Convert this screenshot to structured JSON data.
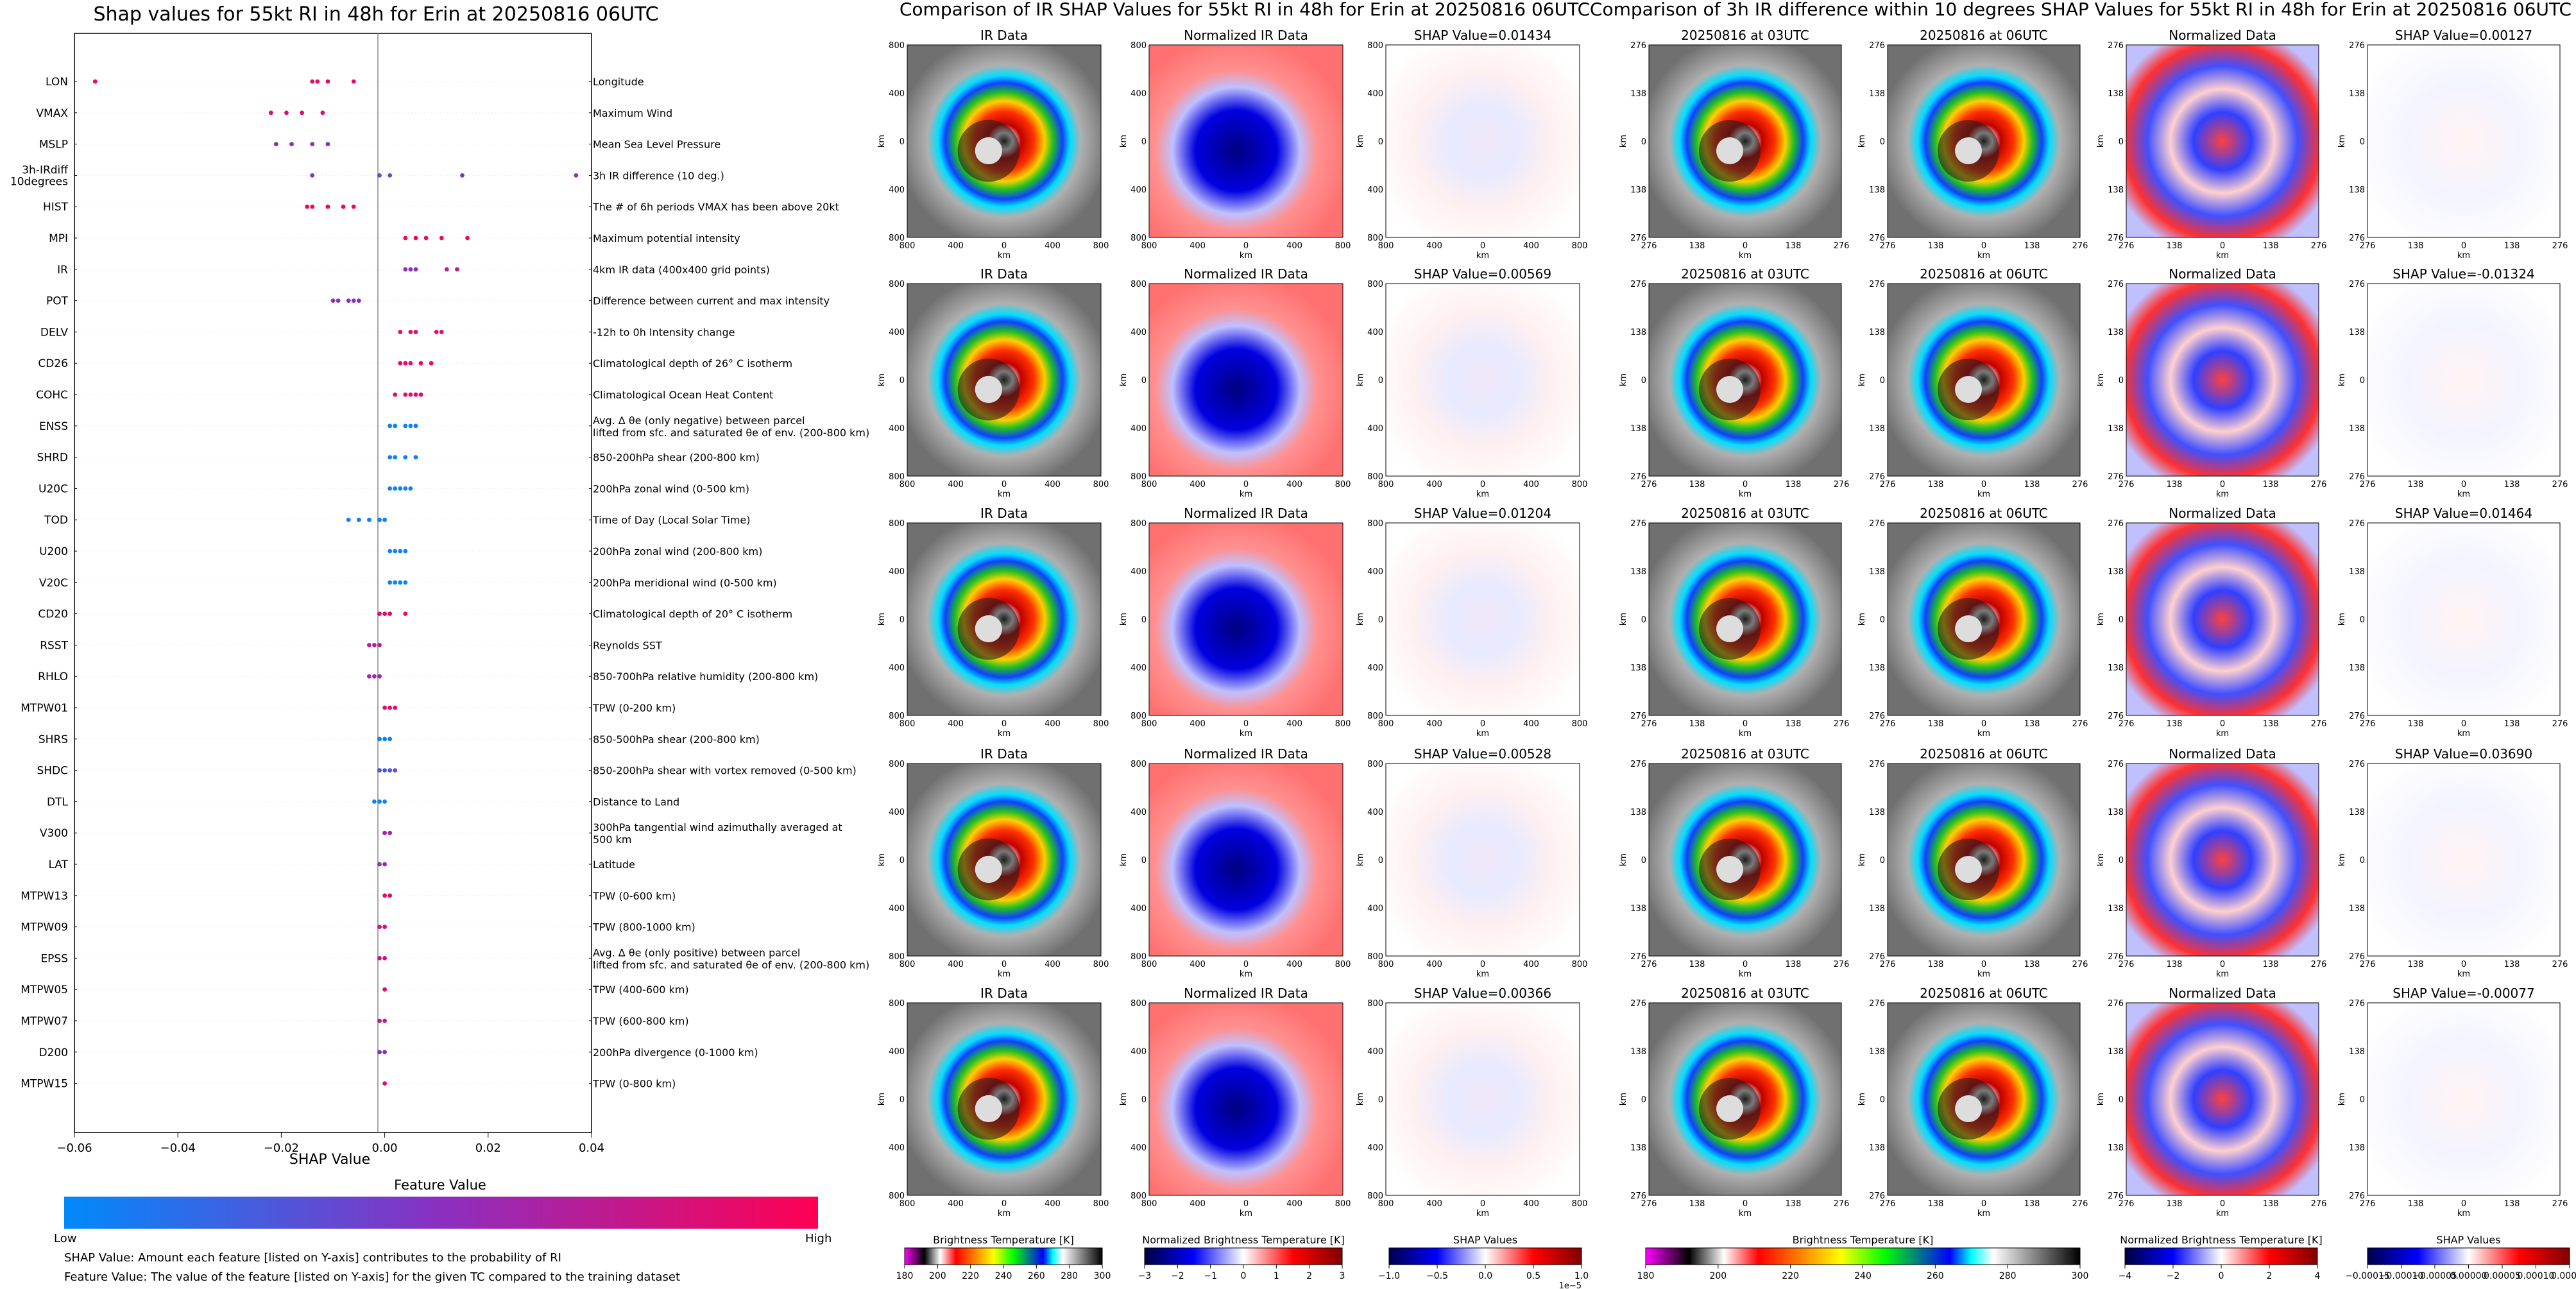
{
  "shap_panel": {
    "title": "Shap values for 55kt RI in 48h for Erin at 20250816 06UTC",
    "xlabel": "SHAP Value",
    "colorbar_title": "Feature Value",
    "colorbar_low": "Low",
    "colorbar_high": "High",
    "footnote_1": "SHAP Value: Amount each feature [listed on Y-axis] contributes to the probability of RI",
    "footnote_2": "Feature Value: The value of the feature [listed on Y-axis] for the given TC compared to the training dataset"
  },
  "ir_panel": {
    "title": "Comparison of IR SHAP Values for 55kt RI in 48h for Erin at 20250816 06UTC",
    "col_titles": [
      "IR Data",
      "Normalized IR Data"
    ],
    "shap_titles": [
      "SHAP Value=0.01434",
      "SHAP Value=0.00569",
      "SHAP Value=0.01204",
      "SHAP Value=0.00528",
      "SHAP Value=0.00366"
    ],
    "ticks": [
      "800",
      "400",
      "0",
      "400",
      "800"
    ],
    "axis_unit": "km",
    "colorbars": [
      {
        "label": "Brightness Temperature [K]",
        "ticks": [
          "180",
          "200",
          "220",
          "240",
          "260",
          "280",
          "300"
        ]
      },
      {
        "label": "Normalized Brightness Temperature [K]",
        "ticks": [
          "−3",
          "−2",
          "−1",
          "0",
          "1",
          "2",
          "3"
        ]
      },
      {
        "label": "SHAP Values",
        "ticks": [
          "−1.0",
          "−0.5",
          "0.0",
          "0.5",
          "1.0"
        ],
        "offset": "1e−5"
      }
    ]
  },
  "diff_panel": {
    "title": "Comparison of 3h IR difference within 10 degrees SHAP Values for 55kt RI in 48h for Erin at 20250816 06UTC",
    "col_titles": [
      "20250816 at 03UTC",
      "20250816 at 06UTC",
      "Normalized Data"
    ],
    "shap_titles": [
      "SHAP Value=0.00127",
      "SHAP Value=-0.01324",
      "SHAP Value=0.01464",
      "SHAP Value=0.03690",
      "SHAP Value=-0.00077"
    ],
    "ticks": [
      "276",
      "138",
      "0",
      "138",
      "276"
    ],
    "axis_unit": "km",
    "colorbars": [
      {
        "label": "Brightness Temperature [K]",
        "ticks": [
          "180",
          "200",
          "220",
          "240",
          "260",
          "280",
          "300"
        ]
      },
      {
        "label": "Normalized Brightness Temperature [K]",
        "ticks": [
          "−4",
          "−2",
          "0",
          "2",
          "4"
        ]
      },
      {
        "label": "SHAP Values",
        "ticks": [
          "−0.00015",
          "−0.00010",
          "−0.00005",
          "0.00000",
          "0.00005",
          "0.00010",
          "0.00015"
        ]
      }
    ]
  },
  "colors": {
    "low": "#008afb",
    "mid": "#8b2fc0",
    "high": "#ff0052",
    "ir_gray": "#7c7c7c",
    "norm_red": "#ff8080",
    "norm_blue": "#0000c8"
  },
  "chart_data": {
    "type": "scatter",
    "title": "Shap values for 55kt RI in 48h for Erin at 20250816 06UTC",
    "xlabel": "SHAP Value",
    "xlim": [
      -0.06,
      0.04
    ],
    "xticks": [
      "−0.06",
      "−0.04",
      "−0.02",
      "0.00",
      "0.02",
      "0.04"
    ],
    "features": [
      {
        "code": "LON",
        "desc": "Longitude",
        "points": [
          [
            -0.056,
            0.9
          ],
          [
            -0.014,
            0.9
          ],
          [
            -0.013,
            0.9
          ],
          [
            -0.011,
            0.9
          ],
          [
            -0.006,
            0.9
          ]
        ]
      },
      {
        "code": "VMAX",
        "desc": "Maximum Wind",
        "points": [
          [
            -0.022,
            0.85
          ],
          [
            -0.019,
            0.85
          ],
          [
            -0.016,
            0.85
          ],
          [
            -0.012,
            0.85
          ]
        ]
      },
      {
        "code": "MSLP",
        "desc": "Mean Sea Level Pressure",
        "points": [
          [
            -0.021,
            0.55
          ],
          [
            -0.018,
            0.55
          ],
          [
            -0.014,
            0.55
          ],
          [
            -0.011,
            0.55
          ]
        ]
      },
      {
        "code": "3h-IRdiff\n10degrees",
        "desc": "3h IR difference (10 deg.)",
        "points": [
          [
            -0.014,
            0.5
          ],
          [
            -0.001,
            0.3
          ],
          [
            0.001,
            0.3
          ],
          [
            0.015,
            0.5
          ],
          [
            0.037,
            0.5
          ]
        ]
      },
      {
        "code": "HIST",
        "desc": "The # of 6h periods VMAX has been above 20kt",
        "points": [
          [
            -0.015,
            0.95
          ],
          [
            -0.014,
            0.95
          ],
          [
            -0.011,
            0.95
          ],
          [
            -0.008,
            0.95
          ],
          [
            -0.006,
            0.95
          ]
        ]
      },
      {
        "code": "MPI",
        "desc": "Maximum potential intensity",
        "points": [
          [
            0.004,
            0.95
          ],
          [
            0.006,
            0.95
          ],
          [
            0.008,
            0.95
          ],
          [
            0.011,
            0.95
          ],
          [
            0.016,
            0.95
          ]
        ]
      },
      {
        "code": "IR",
        "desc": "4km IR data (400x400 grid points)",
        "points": [
          [
            0.004,
            0.5
          ],
          [
            0.005,
            0.5
          ],
          [
            0.006,
            0.5
          ],
          [
            0.012,
            0.7
          ],
          [
            0.014,
            0.7
          ]
        ]
      },
      {
        "code": "POT",
        "desc": "Difference between current and max intensity",
        "points": [
          [
            -0.01,
            0.5
          ],
          [
            -0.009,
            0.5
          ],
          [
            -0.007,
            0.5
          ],
          [
            -0.006,
            0.5
          ],
          [
            -0.005,
            0.5
          ]
        ]
      },
      {
        "code": "DELV",
        "desc": "-12h to 0h Intensity change",
        "points": [
          [
            0.003,
            0.9
          ],
          [
            0.005,
            0.9
          ],
          [
            0.006,
            0.9
          ],
          [
            0.01,
            0.9
          ],
          [
            0.011,
            0.9
          ]
        ]
      },
      {
        "code": "CD26",
        "desc": "Climatological depth of 26° C isotherm",
        "points": [
          [
            0.003,
            0.9
          ],
          [
            0.004,
            0.9
          ],
          [
            0.005,
            0.9
          ],
          [
            0.007,
            0.9
          ],
          [
            0.009,
            0.9
          ]
        ]
      },
      {
        "code": "COHC",
        "desc": "Climatological Ocean Heat Content",
        "points": [
          [
            0.002,
            0.9
          ],
          [
            0.004,
            0.9
          ],
          [
            0.005,
            0.9
          ],
          [
            0.006,
            0.9
          ],
          [
            0.007,
            0.9
          ]
        ]
      },
      {
        "code": "ENSS",
        "desc": "Avg. Δ θe (only negative) between parcel lifted from sfc. and saturated θe of env. (200-800 km)",
        "points": [
          [
            0.001,
            0.05
          ],
          [
            0.002,
            0.05
          ],
          [
            0.004,
            0.05
          ],
          [
            0.005,
            0.05
          ],
          [
            0.006,
            0.05
          ]
        ]
      },
      {
        "code": "SHRD",
        "desc": "850-200hPa shear (200-800 km)",
        "points": [
          [
            0.001,
            0.05
          ],
          [
            0.002,
            0.05
          ],
          [
            0.004,
            0.05
          ],
          [
            0.006,
            0.05
          ]
        ]
      },
      {
        "code": "U20C",
        "desc": "200hPa zonal wind (0-500 km)",
        "points": [
          [
            0.001,
            0.05
          ],
          [
            0.002,
            0.05
          ],
          [
            0.003,
            0.05
          ],
          [
            0.004,
            0.05
          ],
          [
            0.005,
            0.05
          ]
        ]
      },
      {
        "code": "TOD",
        "desc": "Time of Day (Local Solar Time)",
        "points": [
          [
            -0.007,
            0.05
          ],
          [
            -0.005,
            0.05
          ],
          [
            -0.003,
            0.05
          ],
          [
            -0.001,
            0.05
          ],
          [
            0.0,
            0.05
          ]
        ]
      },
      {
        "code": "U200",
        "desc": "200hPa zonal wind (200-800 km)",
        "points": [
          [
            0.001,
            0.05
          ],
          [
            0.002,
            0.05
          ],
          [
            0.003,
            0.05
          ],
          [
            0.004,
            0.05
          ]
        ]
      },
      {
        "code": "V20C",
        "desc": "200hPa meridional wind (0-500 km)",
        "points": [
          [
            0.001,
            0.05
          ],
          [
            0.002,
            0.05
          ],
          [
            0.003,
            0.05
          ],
          [
            0.004,
            0.05
          ]
        ]
      },
      {
        "code": "CD20",
        "desc": "Climatological depth of 20° C isotherm",
        "points": [
          [
            -0.001,
            0.9
          ],
          [
            0.0,
            0.9
          ],
          [
            0.001,
            0.9
          ],
          [
            0.004,
            0.9
          ]
        ]
      },
      {
        "code": "RSST",
        "desc": "Reynolds SST",
        "points": [
          [
            -0.003,
            0.7
          ],
          [
            -0.002,
            0.7
          ],
          [
            -0.001,
            0.7
          ]
        ]
      },
      {
        "code": "RHLO",
        "desc": "850-700hPa relative humidity (200-800 km)",
        "points": [
          [
            -0.003,
            0.6
          ],
          [
            -0.002,
            0.6
          ],
          [
            -0.001,
            0.6
          ]
        ]
      },
      {
        "code": "MTPW01",
        "desc": "TPW (0-200 km)",
        "points": [
          [
            0.0,
            0.9
          ],
          [
            0.001,
            0.9
          ],
          [
            0.002,
            0.9
          ]
        ]
      },
      {
        "code": "SHRS",
        "desc": "850-500hPa shear (200-800 km)",
        "points": [
          [
            -0.001,
            0.05
          ],
          [
            0.0,
            0.05
          ],
          [
            0.001,
            0.05
          ]
        ]
      },
      {
        "code": "SHDC",
        "desc": "850-200hPa shear with vortex removed (0-500 km)",
        "points": [
          [
            -0.001,
            0.3
          ],
          [
            0.0,
            0.3
          ],
          [
            0.001,
            0.3
          ],
          [
            0.002,
            0.3
          ]
        ]
      },
      {
        "code": "DTL",
        "desc": "Distance to Land",
        "points": [
          [
            -0.002,
            0.05
          ],
          [
            -0.001,
            0.05
          ],
          [
            0.0,
            0.05
          ]
        ]
      },
      {
        "code": "V300",
        "desc": "300hPa tangential wind azimuthally averaged at 500 km",
        "points": [
          [
            0.0,
            0.6
          ],
          [
            0.001,
            0.6
          ]
        ]
      },
      {
        "code": "LAT",
        "desc": "Latitude",
        "points": [
          [
            -0.001,
            0.5
          ],
          [
            0.0,
            0.5
          ]
        ]
      },
      {
        "code": "MTPW13",
        "desc": "TPW (0-600 km)",
        "points": [
          [
            0.0,
            0.9
          ],
          [
            0.001,
            0.9
          ]
        ]
      },
      {
        "code": "MTPW09",
        "desc": "TPW (800-1000 km)",
        "points": [
          [
            -0.001,
            0.8
          ],
          [
            0.0,
            0.8
          ]
        ]
      },
      {
        "code": "EPSS",
        "desc": "Avg. Δ θe (only positive) between parcel lifted from sfc. and saturated θe of env. (200-800 km)",
        "points": [
          [
            -0.001,
            0.8
          ],
          [
            0.0,
            0.8
          ]
        ]
      },
      {
        "code": "MTPW05",
        "desc": "TPW (400-600 km)",
        "points": [
          [
            0.0,
            0.9
          ]
        ]
      },
      {
        "code": "MTPW07",
        "desc": "TPW (600-800 km)",
        "points": [
          [
            -0.001,
            0.7
          ],
          [
            0.0,
            0.7
          ]
        ]
      },
      {
        "code": "D200",
        "desc": "200hPa divergence (0-1000 km)",
        "points": [
          [
            -0.001,
            0.5
          ],
          [
            0.0,
            0.5
          ]
        ]
      },
      {
        "code": "MTPW15",
        "desc": "TPW (0-800 km)",
        "points": [
          [
            0.0,
            0.9
          ]
        ]
      }
    ]
  }
}
